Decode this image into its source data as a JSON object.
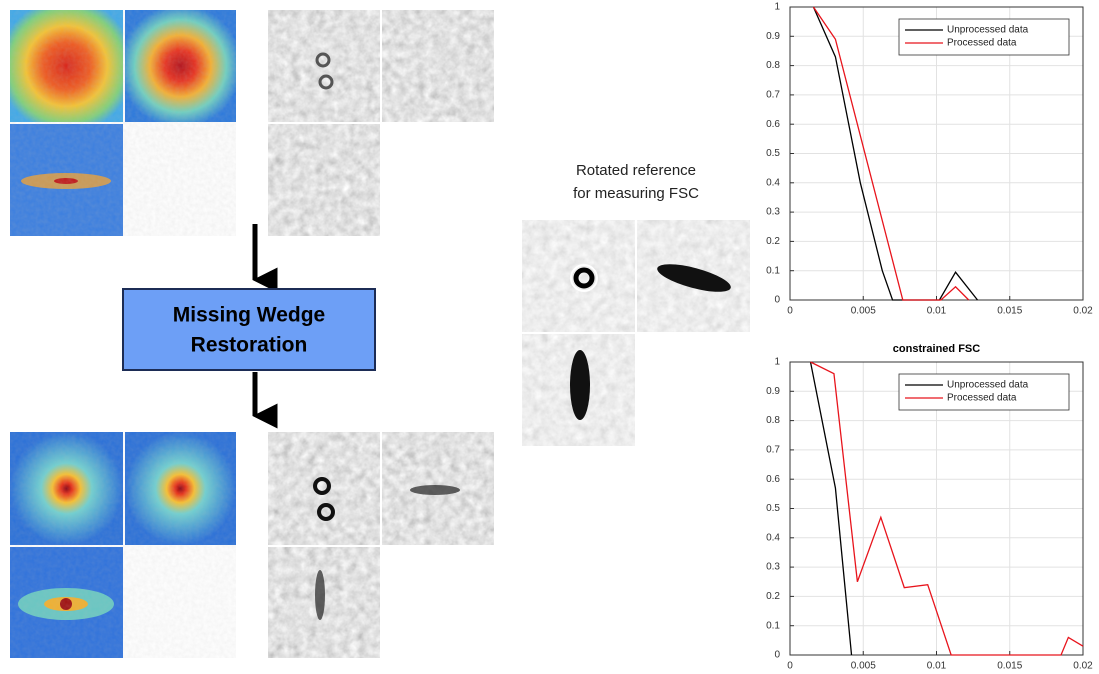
{
  "chart_data": [
    {
      "type": "line",
      "grid": true,
      "legend": "top-right",
      "xlim": [
        0,
        0.02
      ],
      "xticks": [
        0,
        0.005,
        0.01,
        0.015,
        0.02
      ],
      "ylim": [
        0,
        1
      ],
      "yticks": [
        0,
        0.1,
        0.2,
        0.3,
        0.4,
        0.5,
        0.6,
        0.7,
        0.8,
        0.9,
        1
      ],
      "series": [
        {
          "name": "Unprocessed data",
          "color": "#000000",
          "x": [
            0.0016,
            0.0031,
            0.0048,
            0.0063,
            0.007,
            0.0102,
            0.0113,
            0.0128
          ],
          "values": [
            1,
            0.83,
            0.4,
            0.1,
            0,
            0,
            0.095,
            0
          ]
        },
        {
          "name": "Processed data",
          "color": "#e8141c",
          "x": [
            0.0016,
            0.0031,
            0.0077,
            0.0103,
            0.0113,
            0.0122
          ],
          "values": [
            1,
            0.89,
            0,
            0,
            0.045,
            0
          ]
        }
      ]
    },
    {
      "type": "line",
      "title": "constrained FSC",
      "grid": true,
      "legend": "top-right",
      "xlim": [
        0,
        0.02
      ],
      "xticks": [
        0,
        0.005,
        0.01,
        0.015,
        0.02
      ],
      "ylim": [
        0,
        1
      ],
      "yticks": [
        0,
        0.1,
        0.2,
        0.3,
        0.4,
        0.5,
        0.6,
        0.7,
        0.8,
        0.9,
        1
      ],
      "series": [
        {
          "name": "Unprocessed data",
          "color": "#000000",
          "x": [
            0.0014,
            0.0031,
            0.0042
          ],
          "values": [
            1,
            0.57,
            0
          ]
        },
        {
          "name": "Processed data",
          "color": "#e8141c",
          "x": [
            0.0014,
            0.003,
            0.0046,
            0.0062,
            0.0078,
            0.0094,
            0.011,
            0.0185,
            0.019,
            0.02
          ],
          "values": [
            1,
            0.96,
            0.25,
            0.47,
            0.23,
            0.24,
            0,
            0,
            0.06,
            0.03
          ]
        }
      ]
    }
  ],
  "diagram": {
    "box_label": [
      "Missing Wedge",
      "Restoration"
    ],
    "reference_caption": [
      "Rotated reference",
      "for measuring FSC"
    ]
  }
}
